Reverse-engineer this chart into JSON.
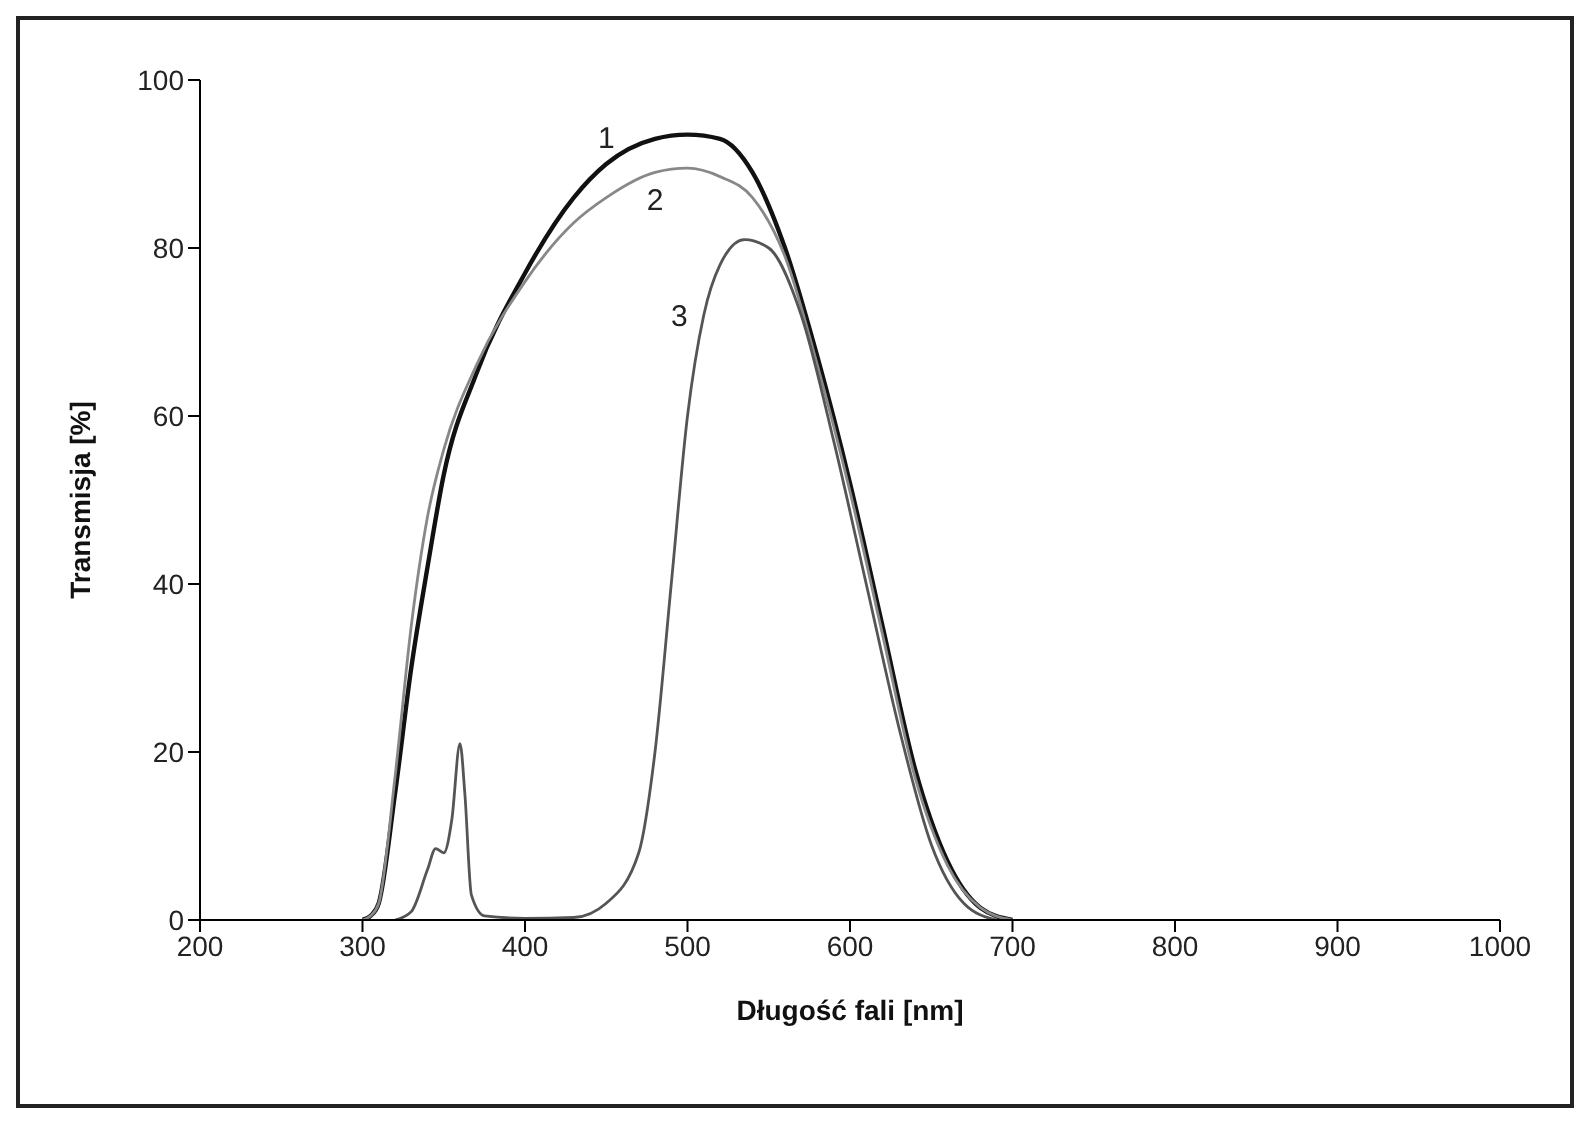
{
  "chart_data": {
    "type": "line",
    "xlabel": "Długość fali [nm]",
    "ylabel": "Transmisja [%]",
    "xlim": [
      200,
      1000
    ],
    "xticks": [
      200,
      300,
      400,
      500,
      600,
      700,
      800,
      900,
      1000
    ],
    "ylim": [
      0,
      100
    ],
    "yticks": [
      0,
      20,
      40,
      60,
      80,
      100
    ],
    "grid": false,
    "legend": false,
    "marker": "none",
    "line_style": "solid",
    "series": [
      {
        "color": "#111111",
        "x": [
          300,
          305,
          310,
          320,
          330,
          340,
          350,
          370,
          400,
          430,
          450,
          480,
          500,
          520,
          540,
          560,
          580,
          600,
          620,
          640,
          660,
          680,
          700
        ],
        "values": [
          0,
          0.5,
          2,
          15,
          30,
          42,
          53,
          65,
          77,
          86,
          90,
          93,
          93.5,
          93,
          89,
          80,
          67,
          52,
          35,
          18,
          7,
          1.5,
          0
        ]
      },
      {
        "color": "#888888",
        "x": [
          300,
          305,
          310,
          320,
          330,
          340,
          350,
          370,
          400,
          430,
          450,
          480,
          500,
          520,
          540,
          560,
          580,
          600,
          620,
          640,
          660,
          680,
          700
        ],
        "values": [
          0,
          0.5,
          2,
          17,
          35,
          48,
          56,
          66,
          76,
          83,
          86,
          89,
          89.5,
          88.5,
          86,
          79,
          66,
          51,
          34,
          17,
          6.5,
          1.5,
          0
        ]
      },
      {
        "color": "#555555",
        "x": [
          320,
          330,
          340,
          345,
          350,
          355,
          360,
          363,
          367,
          375,
          400,
          430,
          450,
          470,
          480,
          490,
          500,
          510,
          520,
          535,
          550,
          570,
          590,
          610,
          630,
          650,
          670,
          690
        ],
        "values": [
          0,
          1,
          6,
          8.5,
          8,
          12,
          21,
          15,
          3,
          0.5,
          0.2,
          0.3,
          2,
          8,
          20,
          40,
          60,
          72,
          78,
          81,
          80,
          72,
          57,
          40,
          23,
          9,
          2,
          0
        ]
      }
    ],
    "annotations": [
      {
        "text": "1",
        "x": 450,
        "y": 90
      },
      {
        "text": "2",
        "x": 480,
        "y": 89
      },
      {
        "text": "3",
        "x": 510,
        "y": 72
      }
    ]
  }
}
